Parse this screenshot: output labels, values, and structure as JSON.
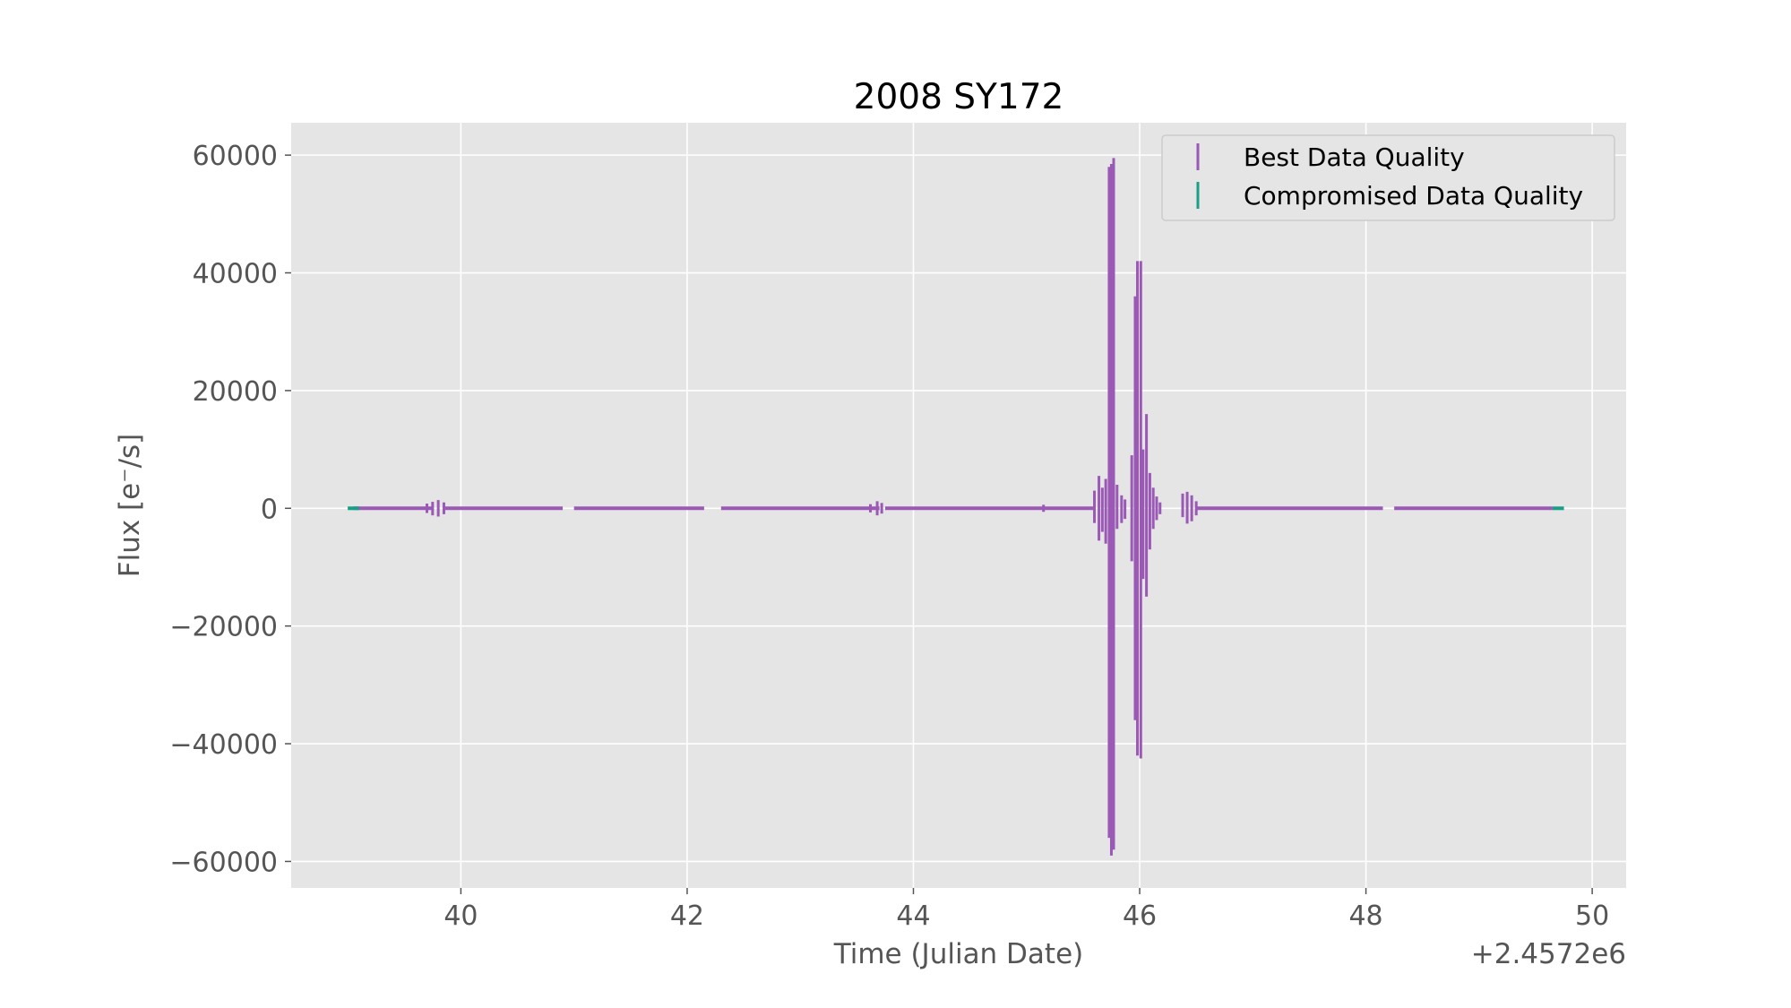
{
  "chart_data": {
    "type": "scatter",
    "title": "2008 SY172",
    "xlabel": "Time (Julian Date)",
    "ylabel": "Flux [e$^-$/s]",
    "ylabel_display": "Flux [e⁻/s]",
    "x_offset_label": "+2.4572e6",
    "x_offset": 2457200,
    "xlim": [
      38.5,
      50.3
    ],
    "ylim": [
      -64500,
      65500
    ],
    "xticks": [
      40,
      42,
      44,
      46,
      48,
      50
    ],
    "yticks": [
      60000,
      40000,
      20000,
      0,
      -20000,
      -40000,
      -60000
    ],
    "xtick_labels": [
      "40",
      "42",
      "44",
      "46",
      "48",
      "50"
    ],
    "ytick_labels": [
      "60000",
      "40000",
      "20000",
      "0",
      "−20000",
      "−40000",
      "−60000"
    ],
    "grid": true,
    "legend_position": "upper right",
    "series": [
      {
        "name": "Best Data Quality",
        "color": "#9b59b6",
        "baseline_segments": [
          [
            39.05,
            39.75
          ],
          [
            39.85,
            40.9
          ],
          [
            41.0,
            42.15
          ],
          [
            42.3,
            43.7
          ],
          [
            43.75,
            45.6
          ],
          [
            46.5,
            48.15
          ],
          [
            48.25,
            49.65
          ]
        ],
        "error_bars": [
          {
            "x": 39.7,
            "low": -800,
            "high": 800
          },
          {
            "x": 39.75,
            "low": -1200,
            "high": 1100
          },
          {
            "x": 39.8,
            "low": -1400,
            "high": 1400
          },
          {
            "x": 39.85,
            "low": -1000,
            "high": 1000
          },
          {
            "x": 43.62,
            "low": -700,
            "high": 700
          },
          {
            "x": 43.68,
            "low": -1200,
            "high": 1200
          },
          {
            "x": 43.72,
            "low": -900,
            "high": 900
          },
          {
            "x": 45.15,
            "low": -600,
            "high": 600
          },
          {
            "x": 45.6,
            "low": -2500,
            "high": 3000
          },
          {
            "x": 45.64,
            "low": -5500,
            "high": 5500
          },
          {
            "x": 45.67,
            "low": -4000,
            "high": 3500
          },
          {
            "x": 45.7,
            "low": -6000,
            "high": 5000
          },
          {
            "x": 45.73,
            "low": -56000,
            "high": 58000
          },
          {
            "x": 45.75,
            "low": -59000,
            "high": 58500
          },
          {
            "x": 45.77,
            "low": -58000,
            "high": 59500
          },
          {
            "x": 45.8,
            "low": -3500,
            "high": 4000
          },
          {
            "x": 45.84,
            "low": -2500,
            "high": 2200
          },
          {
            "x": 45.87,
            "low": -1800,
            "high": 1500
          },
          {
            "x": 45.93,
            "low": -9000,
            "high": 9000
          },
          {
            "x": 45.96,
            "low": -36000,
            "high": 36000
          },
          {
            "x": 45.98,
            "low": -42000,
            "high": 42000
          },
          {
            "x": 46.01,
            "low": -42500,
            "high": 42000
          },
          {
            "x": 46.03,
            "low": -12000,
            "high": 10000
          },
          {
            "x": 46.06,
            "low": -15000,
            "high": 16000
          },
          {
            "x": 46.09,
            "low": -7000,
            "high": 6000
          },
          {
            "x": 46.12,
            "low": -3500,
            "high": 3500
          },
          {
            "x": 46.15,
            "low": -2000,
            "high": 2000
          },
          {
            "x": 46.18,
            "low": -1000,
            "high": 1000
          },
          {
            "x": 46.38,
            "low": -1500,
            "high": 2500
          },
          {
            "x": 46.42,
            "low": -2600,
            "high": 2800
          },
          {
            "x": 46.46,
            "low": -2200,
            "high": 2200
          },
          {
            "x": 46.5,
            "low": -1200,
            "high": 1200
          }
        ]
      },
      {
        "name": "Compromised Data Quality",
        "color": "#16a085",
        "baseline_segments": [
          [
            39.0,
            39.1
          ],
          [
            49.65,
            49.75
          ]
        ],
        "error_bars": []
      }
    ]
  }
}
